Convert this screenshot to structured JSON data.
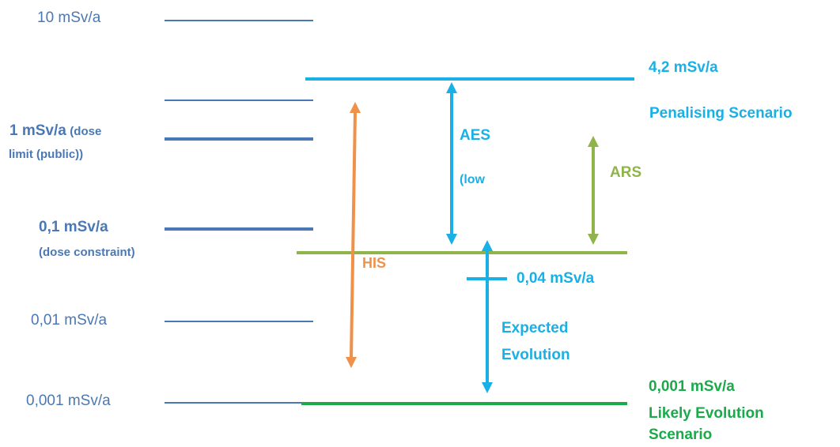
{
  "scale": {
    "s10": "10 mSv/a",
    "s1_main": "1 mSv/a",
    "s1_note_a": "(dose",
    "s1_note_b": "limit (public))",
    "s01_main": "0,1 mSv/a",
    "s01_note": "(dose constraint)",
    "s001": "0,01 mSv/a",
    "s0001": "0,001 mSv/a"
  },
  "penalising": {
    "value": "4,2 mSv/a",
    "label": "Penalising Scenario"
  },
  "aes": {
    "label": "AES",
    "note": "(low"
  },
  "ars": {
    "label": "ARS"
  },
  "his": {
    "label": "HIS"
  },
  "expected": {
    "value": "0,04 mSv/a",
    "label_a": "Expected",
    "label_b": "Evolution"
  },
  "likely": {
    "value": "0,001 mSv/a",
    "label_a": "Likely Evolution",
    "label_b": "Scenario"
  },
  "colors": {
    "scale_blue": "#4a78b4",
    "cyan": "#19b0e6",
    "olive": "#8fb54a",
    "orange": "#f0914a",
    "green": "#1aaa4a"
  }
}
